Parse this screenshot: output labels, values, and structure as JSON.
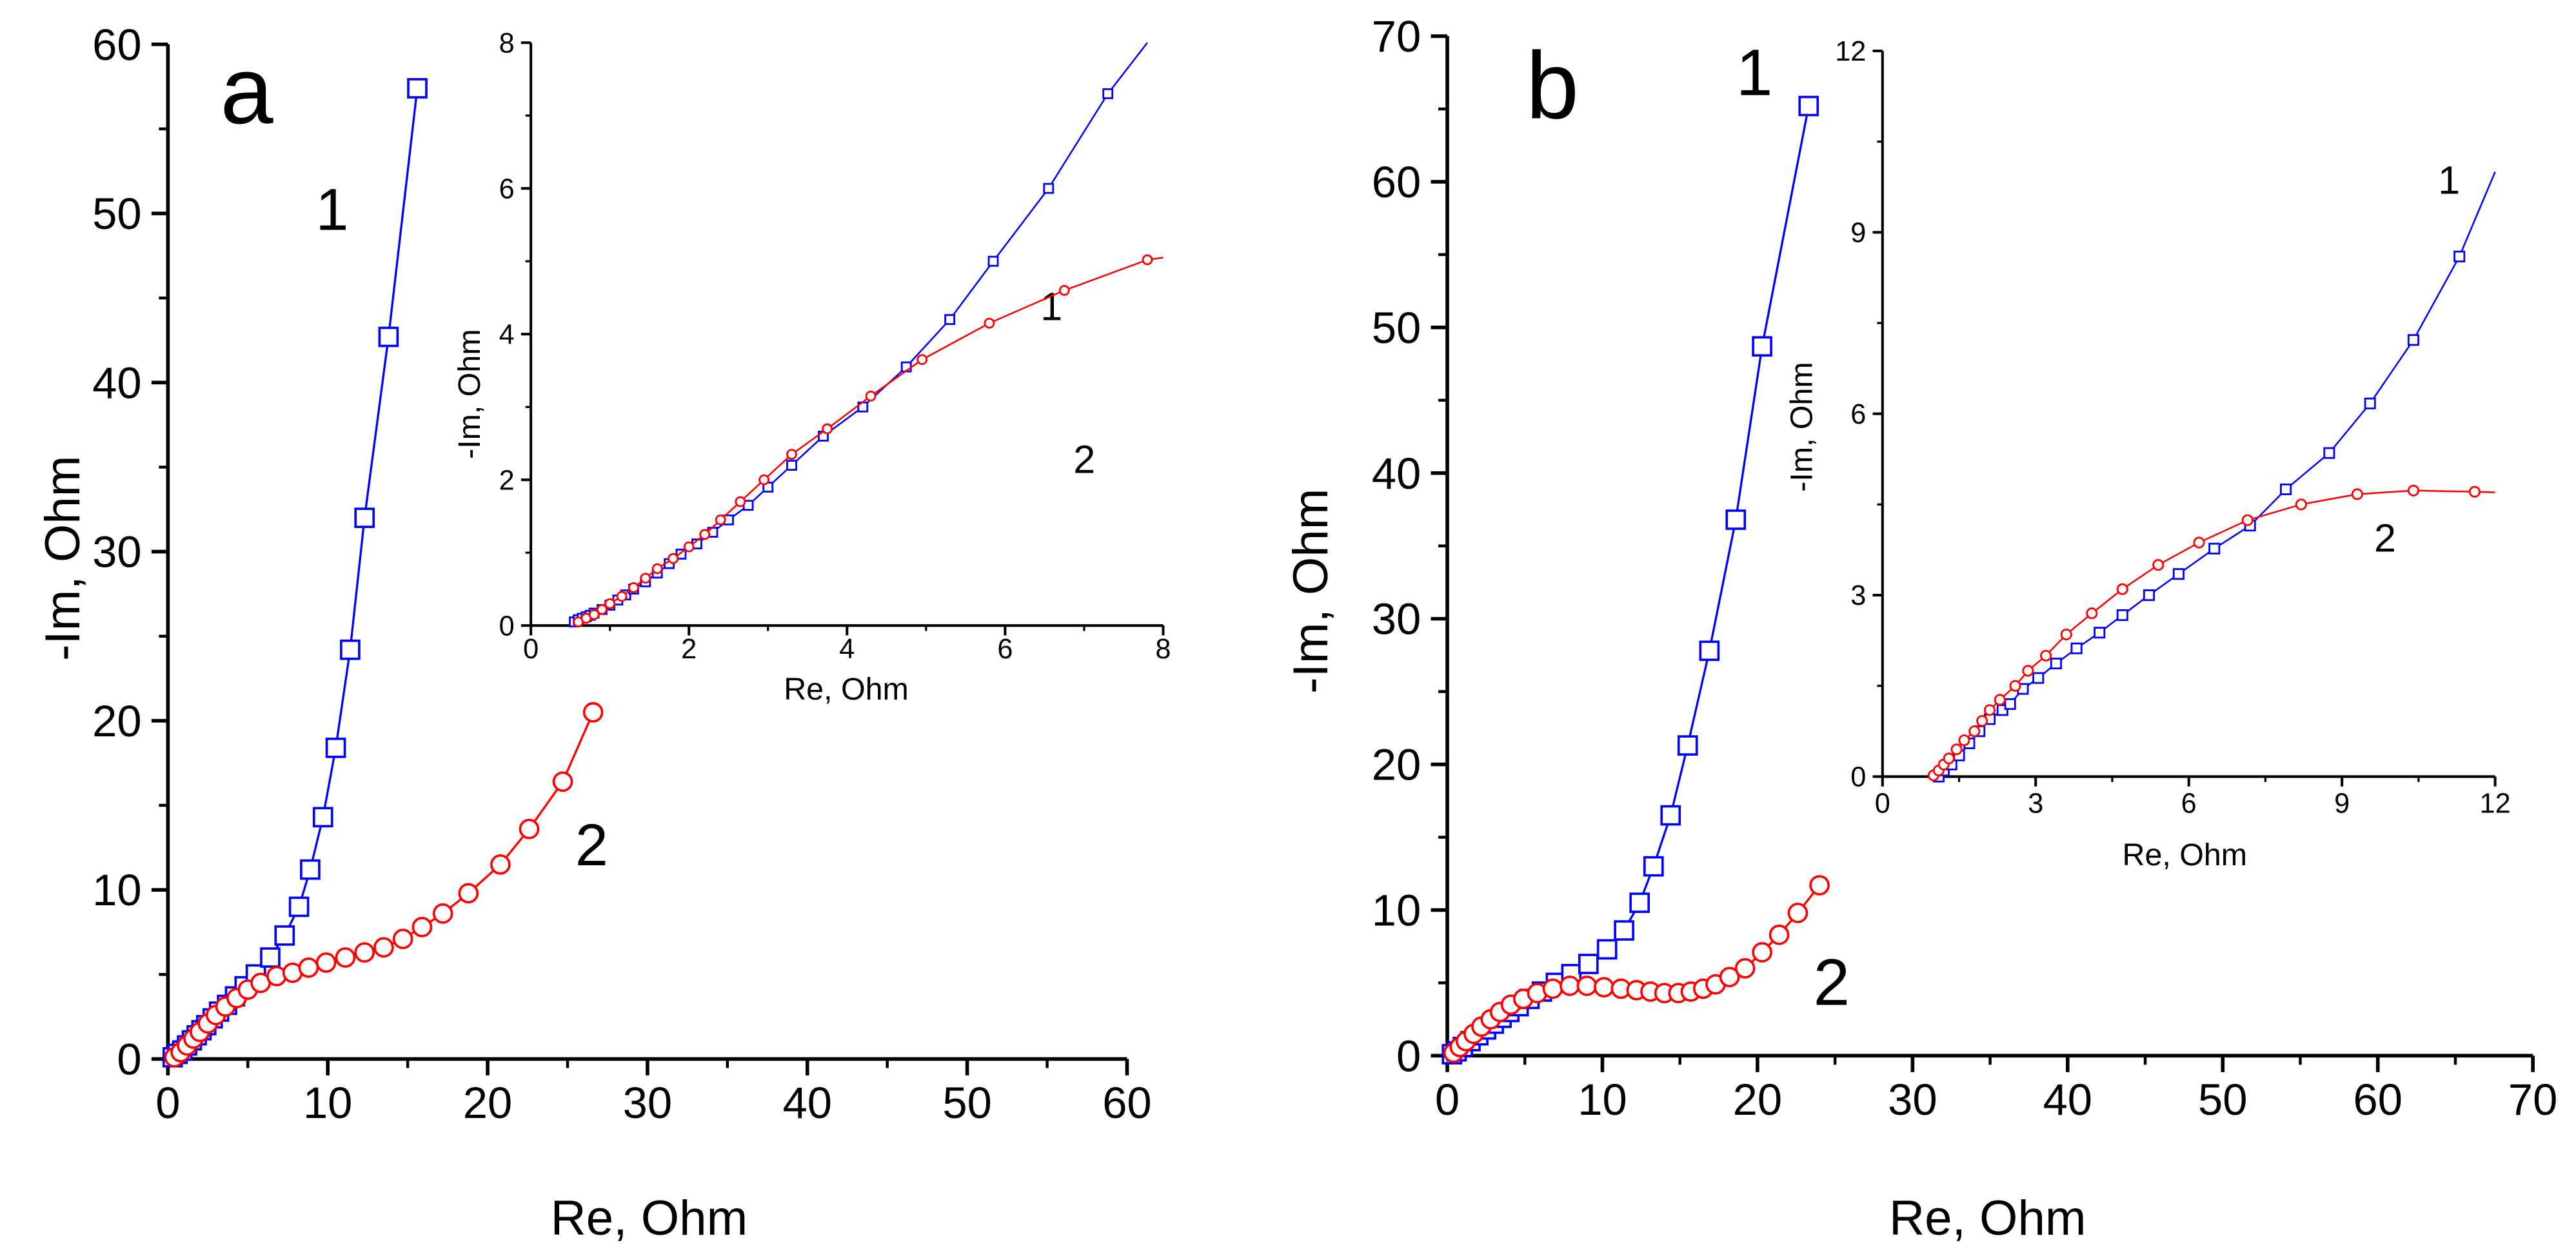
{
  "colors": {
    "series1": "#0000ff",
    "series2": "#ff0000",
    "axis": "#000000"
  },
  "chart_data": [
    {
      "id": "a-main",
      "type": "scatter",
      "panel_label": "a",
      "xlabel": "Re, Ohm",
      "ylabel": "-Im, Ohm",
      "xlim": [
        0,
        60
      ],
      "ylim": [
        0,
        60
      ],
      "xticks": [
        0,
        10,
        20,
        30,
        40,
        50,
        60
      ],
      "yticks": [
        0,
        10,
        20,
        30,
        40,
        50,
        60
      ],
      "xtick_labels": [
        "0",
        "10",
        "20",
        "30",
        "40",
        "50",
        "60"
      ],
      "ytick_labels": [
        "0",
        "10",
        "20",
        "30",
        "40",
        "50",
        "60"
      ],
      "series": [
        {
          "name": "1",
          "marker": "square",
          "color": "#0000ff",
          "x": [
            0.3,
            0.6,
            0.9,
            1.2,
            1.5,
            1.8,
            2.1,
            2.4,
            2.8,
            3.2,
            3.7,
            4.2,
            4.8,
            5.5,
            6.4,
            7.3,
            8.2,
            8.9,
            9.7,
            10.5,
            11.4,
            12.3,
            13.8,
            15.6
          ],
          "y": [
            0.1,
            0.3,
            0.5,
            0.8,
            1.1,
            1.4,
            1.7,
            2.0,
            2.4,
            2.8,
            3.2,
            3.7,
            4.3,
            5.0,
            6.0,
            7.3,
            9.0,
            11.2,
            14.3,
            18.4,
            24.2,
            32.0,
            42.7,
            57.4
          ]
        },
        {
          "name": "2",
          "marker": "circle",
          "color": "#ff0000",
          "x": [
            0.4,
            0.8,
            1.2,
            1.6,
            2.0,
            2.5,
            3.0,
            3.6,
            4.3,
            5.0,
            5.8,
            6.8,
            7.8,
            8.8,
            9.9,
            11.1,
            12.3,
            13.5,
            14.7,
            15.9,
            17.2,
            18.8,
            20.8,
            22.6,
            24.7,
            26.6
          ],
          "y": [
            0.1,
            0.4,
            0.8,
            1.2,
            1.6,
            2.1,
            2.6,
            3.1,
            3.6,
            4.1,
            4.5,
            4.9,
            5.1,
            5.4,
            5.7,
            6.0,
            6.3,
            6.6,
            7.1,
            7.8,
            8.6,
            9.8,
            11.5,
            13.6,
            16.4,
            20.5
          ]
        }
      ]
    },
    {
      "id": "a-inset",
      "type": "line",
      "xlabel": "Re, Ohm",
      "ylabel": "-Im, Ohm",
      "xlim": [
        0,
        8
      ],
      "ylim": [
        0,
        8
      ],
      "xticks": [
        0,
        2,
        4,
        6,
        8
      ],
      "yticks": [
        0,
        2,
        4,
        6,
        8
      ],
      "xtick_labels": [
        "0",
        "2",
        "4",
        "6",
        "8"
      ],
      "ytick_labels": [
        "0",
        "2",
        "4",
        "6",
        "8"
      ],
      "series": [
        {
          "name": "1",
          "marker": "square",
          "color": "#0000ff",
          "x": [
            0.55,
            0.6,
            0.65,
            0.7,
            0.75,
            0.8,
            0.9,
            1.0,
            1.1,
            1.2,
            1.3,
            1.45,
            1.6,
            1.75,
            1.9,
            2.1,
            2.3,
            2.5,
            2.75,
            3.0,
            3.3,
            3.7,
            4.2,
            4.75,
            5.3,
            5.85,
            6.55,
            7.3
          ],
          "y": [
            0.05,
            0.08,
            0.1,
            0.12,
            0.14,
            0.17,
            0.22,
            0.28,
            0.35,
            0.42,
            0.5,
            0.6,
            0.72,
            0.85,
            0.98,
            1.12,
            1.28,
            1.45,
            1.65,
            1.9,
            2.2,
            2.6,
            3.0,
            3.55,
            4.2,
            5.0,
            6.0,
            7.3
          ],
          "line_end": [
            7.8,
            8.0
          ]
        },
        {
          "name": "2",
          "marker": "circle",
          "color": "#ff0000",
          "x": [
            0.6,
            0.7,
            0.8,
            0.9,
            1.0,
            1.15,
            1.3,
            1.45,
            1.6,
            1.8,
            2.0,
            2.2,
            2.4,
            2.65,
            2.95,
            3.3,
            3.75,
            4.3,
            4.95,
            5.8,
            6.75,
            7.8
          ],
          "y": [
            0.05,
            0.1,
            0.15,
            0.22,
            0.3,
            0.4,
            0.52,
            0.65,
            0.78,
            0.92,
            1.08,
            1.25,
            1.45,
            1.7,
            2.0,
            2.35,
            2.7,
            3.15,
            3.65,
            4.15,
            4.6,
            5.02
          ],
          "line_end": [
            8.0,
            5.05
          ]
        }
      ]
    },
    {
      "id": "b-main",
      "type": "scatter",
      "panel_label": "b",
      "xlabel": "Re, Ohm",
      "ylabel": "-Im, Ohm",
      "xlim": [
        0,
        70
      ],
      "ylim": [
        0,
        70
      ],
      "xticks": [
        0,
        10,
        20,
        30,
        40,
        50,
        60,
        70
      ],
      "yticks": [
        0,
        10,
        20,
        30,
        40,
        50,
        60,
        70
      ],
      "xtick_labels": [
        "0",
        "10",
        "20",
        "30",
        "40",
        "50",
        "60",
        "70"
      ],
      "ytick_labels": [
        "0",
        "10",
        "20",
        "30",
        "40",
        "50",
        "60",
        "70"
      ],
      "series": [
        {
          "name": "1",
          "marker": "square",
          "color": "#0000ff",
          "x": [
            0.3,
            0.6,
            1.0,
            1.5,
            2.0,
            2.5,
            3.0,
            3.5,
            4.0,
            4.6,
            5.3,
            6.1,
            7.0,
            8.0,
            9.1,
            10.3,
            11.4,
            12.4,
            13.3,
            14.4,
            15.5,
            16.9,
            18.6,
            20.3,
            23.3
          ],
          "y": [
            0.1,
            0.3,
            0.6,
            1.0,
            1.4,
            1.8,
            2.2,
            2.6,
            3.0,
            3.4,
            3.9,
            4.4,
            5.0,
            5.6,
            6.3,
            7.3,
            8.6,
            10.5,
            13.0,
            16.5,
            21.3,
            27.8,
            36.8,
            48.7,
            65.2
          ]
        },
        {
          "name": "2",
          "marker": "circle",
          "color": "#ff0000",
          "x": [
            0.4,
            0.8,
            1.2,
            1.7,
            2.2,
            2.8,
            3.4,
            4.1,
            4.9,
            5.8,
            6.8,
            7.9,
            9.0,
            10.1,
            11.2,
            12.2,
            13.1,
            14.0,
            14.9,
            15.7,
            16.5,
            17.3,
            18.2,
            19.2,
            20.3,
            21.4,
            22.6,
            24.0
          ],
          "y": [
            0.2,
            0.6,
            1.0,
            1.5,
            2.0,
            2.5,
            3.0,
            3.5,
            3.9,
            4.3,
            4.6,
            4.8,
            4.8,
            4.7,
            4.6,
            4.5,
            4.4,
            4.3,
            4.3,
            4.4,
            4.6,
            4.9,
            5.4,
            6.0,
            7.1,
            8.3,
            9.8,
            11.7
          ]
        }
      ]
    },
    {
      "id": "b-inset",
      "type": "line",
      "xlabel": "Re, Ohm",
      "ylabel": "-Im, Ohm",
      "xlim": [
        0,
        12
      ],
      "ylim": [
        0,
        12
      ],
      "xticks": [
        0,
        3,
        6,
        9,
        12
      ],
      "yticks": [
        0,
        3,
        6,
        9,
        12
      ],
      "xtick_labels": [
        "0",
        "3",
        "6",
        "9",
        "12"
      ],
      "ytick_labels": [
        "0",
        "3",
        "6",
        "9",
        "12"
      ],
      "series": [
        {
          "name": "1",
          "marker": "square",
          "color": "#0000ff",
          "x": [
            1.1,
            1.2,
            1.35,
            1.5,
            1.7,
            1.9,
            2.1,
            2.35,
            2.5,
            2.75,
            3.05,
            3.4,
            3.8,
            4.25,
            4.7,
            5.22,
            5.8,
            6.5,
            7.2,
            7.9,
            8.75,
            9.55,
            10.4,
            11.3
          ],
          "y": [
            0.0,
            0.1,
            0.2,
            0.35,
            0.55,
            0.75,
            0.95,
            1.1,
            1.2,
            1.45,
            1.63,
            1.87,
            2.12,
            2.38,
            2.67,
            3.0,
            3.35,
            3.77,
            4.15,
            4.75,
            5.35,
            6.17,
            7.22,
            8.6
          ],
          "line_end": [
            12.0,
            10.0
          ]
        },
        {
          "name": "2",
          "marker": "circle",
          "color": "#ff0000",
          "x": [
            1.0,
            1.1,
            1.2,
            1.3,
            1.45,
            1.6,
            1.8,
            1.95,
            2.1,
            2.3,
            2.6,
            2.85,
            3.2,
            3.6,
            4.1,
            4.7,
            5.4,
            6.2,
            7.15,
            8.2,
            9.3,
            10.4,
            11.6
          ],
          "y": [
            0.02,
            0.1,
            0.2,
            0.3,
            0.45,
            0.6,
            0.75,
            0.92,
            1.1,
            1.27,
            1.5,
            1.75,
            2.0,
            2.35,
            2.7,
            3.1,
            3.5,
            3.87,
            4.24,
            4.5,
            4.67,
            4.73,
            4.71
          ],
          "line_end": [
            12.0,
            4.7
          ]
        }
      ]
    }
  ]
}
